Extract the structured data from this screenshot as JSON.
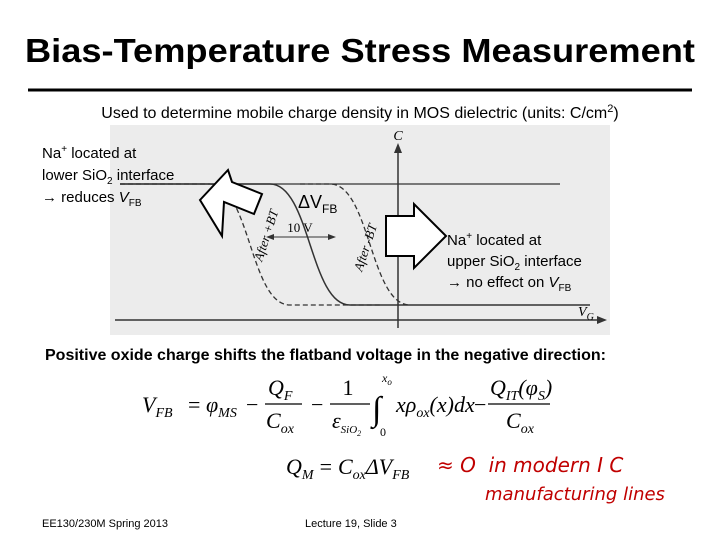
{
  "title": "Bias-Temperature Stress Measurement",
  "subtitle": [
    "Used to determine mobile charge density in MOS dielectric (units: C/cm",
    "2",
    ")"
  ],
  "left_note": {
    "line_1": [
      "Na",
      "+",
      " located at"
    ],
    "line_2": [
      "lower SiO",
      "2",
      " interface"
    ],
    "line_3": [
      "→",
      " reduces ",
      "V",
      "FB"
    ]
  },
  "right_note": {
    "line_1": [
      "Na",
      "+",
      " located at"
    ],
    "line_2": [
      "upper SiO",
      "2",
      " interface"
    ],
    "line_3": [
      "→",
      " no effect on ",
      "V",
      "FB"
    ]
  },
  "graph": {
    "axis_y": "C",
    "axis_x": [
      "V",
      "G"
    ],
    "after_plus": "After +BT",
    "after_minus": "After -BT",
    "shift": "10 V",
    "delta": [
      "ΔV",
      "FB"
    ]
  },
  "statement": "Positive oxide charge shifts the flatband voltage in the negative direction:",
  "equation_1": {
    "lhs": [
      "V",
      "FB"
    ],
    "eq": "=",
    "phi": [
      "φ",
      "MS"
    ],
    "minus": "−",
    "frac_1": {
      "num": [
        "Q",
        "F"
      ],
      "den": [
        "C",
        "ox"
      ]
    },
    "frac_2": {
      "num": "1",
      "den": [
        "ε",
        "SiO",
        "2"
      ]
    },
    "integral": {
      "sign": "∫",
      "lower": "0",
      "upper": [
        "x",
        "o"
      ],
      "body": [
        "xρ",
        "ox",
        "(x)dx"
      ]
    },
    "frac_3": {
      "num": [
        "Q",
        "IT",
        "(φ",
        "S",
        ")"
      ],
      "den": [
        "C",
        "ox"
      ]
    }
  },
  "equation_2": [
    "Q",
    "M",
    "=",
    "C",
    "ox",
    "ΔV",
    "FB"
  ],
  "handwritten_note": {
    "line_1": "≈ O  in modern I C",
    "line_2": "manufacturing lines"
  },
  "footer": {
    "course": "EE130/230M Spring 2013",
    "slide": "Lecture 19, Slide 3"
  }
}
